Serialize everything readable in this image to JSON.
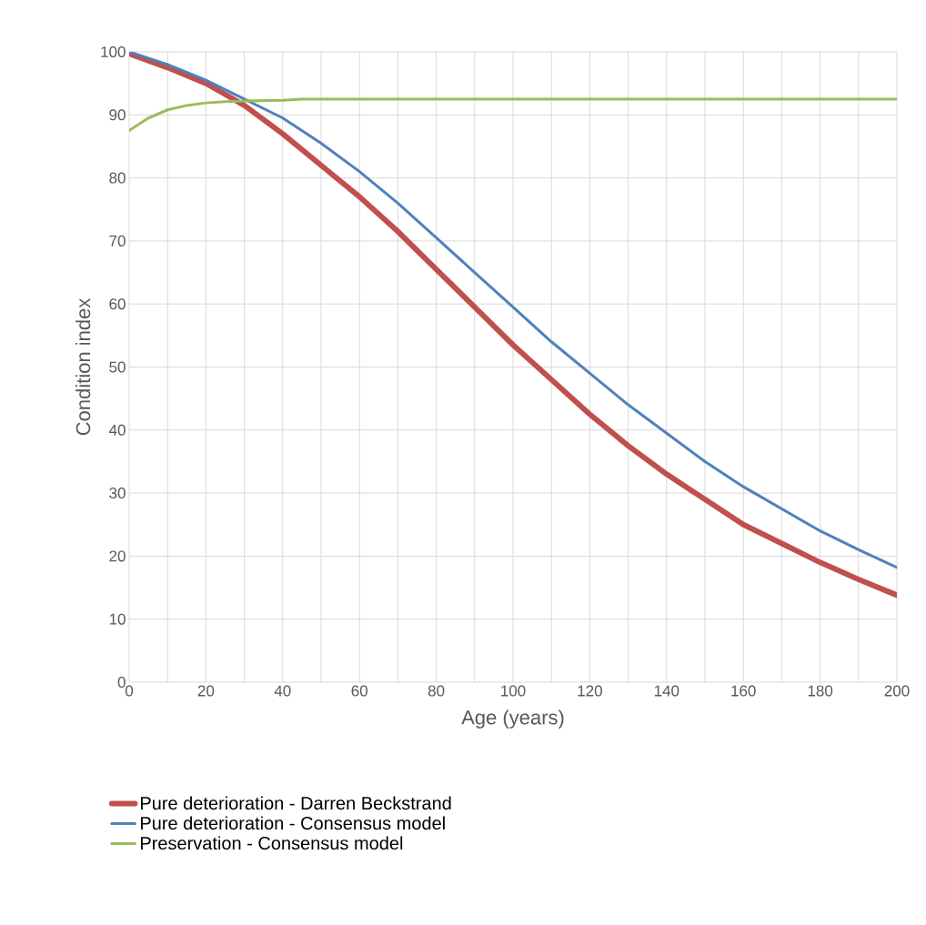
{
  "chart_data": {
    "type": "line",
    "xlabel": "Age (years)",
    "ylabel": "Condition index",
    "xlim": [
      0,
      200
    ],
    "xticks": [
      0,
      20,
      40,
      60,
      80,
      100,
      120,
      140,
      160,
      180,
      200
    ],
    "ylim": [
      0,
      100
    ],
    "yticks": [
      0,
      10,
      20,
      30,
      40,
      50,
      60,
      70,
      80,
      90,
      100
    ],
    "grid": true,
    "legend": "bottom",
    "marker": "none",
    "line_style": "solid",
    "series": [
      {
        "name": "Pure deterioration - Darren Beckstrand",
        "color": "#c0504d",
        "x": [
          0,
          10,
          20,
          30,
          40,
          50,
          60,
          70,
          80,
          90,
          100,
          110,
          120,
          130,
          140,
          150,
          160,
          170,
          180,
          190,
          200
        ],
        "values": [
          99.7,
          97.5,
          95,
          91.5,
          87,
          82,
          77,
          71.5,
          65.5,
          59.5,
          53.5,
          48,
          42.5,
          37.5,
          33,
          29,
          25,
          22,
          19,
          16.3,
          13.8
        ]
      },
      {
        "name": "Pure deterioration - Consensus model",
        "color": "#4f81bd",
        "x": [
          0,
          10,
          20,
          30,
          40,
          50,
          60,
          70,
          80,
          90,
          100,
          110,
          120,
          130,
          140,
          150,
          160,
          170,
          180,
          190,
          200
        ],
        "values": [
          100,
          98,
          95.5,
          92.5,
          89.5,
          85.5,
          81,
          76,
          70.5,
          65,
          59.5,
          54,
          49,
          44,
          39.5,
          35,
          31,
          27.5,
          24,
          21,
          18.2
        ]
      },
      {
        "name": "Preservation - Consensus model",
        "color": "#9bbb59",
        "x": [
          0,
          5,
          10,
          15,
          20,
          25,
          30,
          40,
          45,
          100,
          200
        ],
        "values": [
          87.5,
          89.5,
          90.8,
          91.5,
          91.9,
          92.1,
          92.2,
          92.3,
          92.5,
          92.5,
          92.5
        ]
      }
    ]
  }
}
